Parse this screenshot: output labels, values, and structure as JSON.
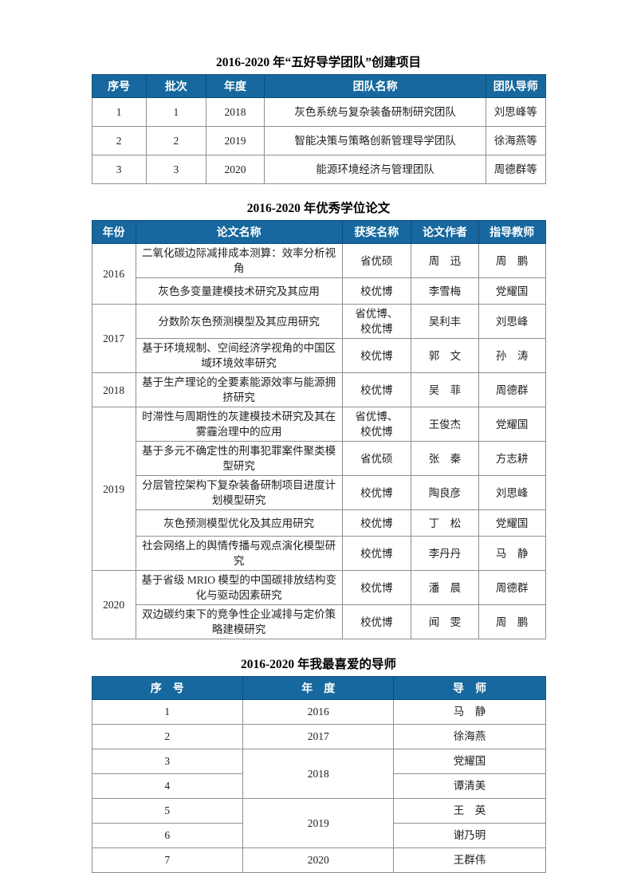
{
  "colors": {
    "header_bg": "#16689E",
    "header_text": "#ffffff",
    "cell_border": "#8f8f8f",
    "header_border": "#0d4f7d",
    "body_text": "#1f1f1f",
    "page_bg": "#ffffff"
  },
  "tables": [
    {
      "title": "2016-2020 年“五好导学团队”创建项目",
      "columns": [
        "序号",
        "批次",
        "年度",
        "团队名称",
        "团队导师"
      ],
      "rows": [
        [
          {
            "t": "1"
          },
          {
            "t": "1"
          },
          {
            "t": "2018"
          },
          {
            "t": "灰色系统与复杂装备研制研究团队"
          },
          {
            "t": "刘思峰等"
          }
        ],
        [
          {
            "t": "2"
          },
          {
            "t": "2"
          },
          {
            "t": "2019"
          },
          {
            "t": "智能决策与策略创新管理导学团队"
          },
          {
            "t": "徐海燕等"
          }
        ],
        [
          {
            "t": "3"
          },
          {
            "t": "3"
          },
          {
            "t": "2020"
          },
          {
            "t": "能源环境经济与管理团队"
          },
          {
            "t": "周德群等"
          }
        ]
      ]
    },
    {
      "title": "2016-2020 年优秀学位论文",
      "columns": [
        "年份",
        "论文名称",
        "获奖名称",
        "论文作者",
        "指导教师"
      ],
      "rows": [
        [
          {
            "t": "2016",
            "rs": 2
          },
          {
            "t": "二氧化碳边际减排成本测算：效率分析视角"
          },
          {
            "t": "省优硕"
          },
          {
            "t": "周　迅"
          },
          {
            "t": "周　鹏"
          }
        ],
        [
          {
            "t": "灰色多变量建模技术研究及其应用"
          },
          {
            "t": "校优博"
          },
          {
            "t": "李雪梅"
          },
          {
            "t": "党耀国"
          }
        ],
        [
          {
            "t": "2017",
            "rs": 2
          },
          {
            "t": "分数阶灰色预测模型及其应用研究"
          },
          {
            "t": "省优博、\n校优博"
          },
          {
            "t": "吴利丰"
          },
          {
            "t": "刘思峰"
          }
        ],
        [
          {
            "t": "基于环境规制、空间经济学视角的中国区域环境效率研究"
          },
          {
            "t": "校优博"
          },
          {
            "t": "郭　文"
          },
          {
            "t": "孙　涛"
          }
        ],
        [
          {
            "t": "2018"
          },
          {
            "t": "基于生产理论的全要素能源效率与能源拥挤研究"
          },
          {
            "t": "校优博"
          },
          {
            "t": "吴　菲"
          },
          {
            "t": "周德群"
          }
        ],
        [
          {
            "t": "2019",
            "rs": 5
          },
          {
            "t": "时滞性与周期性的灰建模技术研究及其在雾霾治理中的应用"
          },
          {
            "t": "省优博、\n校优博"
          },
          {
            "t": "王俊杰"
          },
          {
            "t": "党耀国"
          }
        ],
        [
          {
            "t": "基于多元不确定性的刑事犯罪案件聚类模型研究"
          },
          {
            "t": "省优硕"
          },
          {
            "t": "张　秦"
          },
          {
            "t": "方志耕"
          }
        ],
        [
          {
            "t": "分层管控架构下复杂装备研制项目进度计划模型研究"
          },
          {
            "t": "校优博"
          },
          {
            "t": "陶良彦"
          },
          {
            "t": "刘思峰"
          }
        ],
        [
          {
            "t": "灰色预测模型优化及其应用研究"
          },
          {
            "t": "校优博"
          },
          {
            "t": "丁　松"
          },
          {
            "t": "党耀国"
          }
        ],
        [
          {
            "t": "社会网络上的舆情传播与观点演化模型研究"
          },
          {
            "t": "校优博"
          },
          {
            "t": "李丹丹"
          },
          {
            "t": "马　静"
          }
        ],
        [
          {
            "t": "2020",
            "rs": 2
          },
          {
            "t": "基于省级 MRIO 模型的中国碳排放结构变化与驱动因素研究"
          },
          {
            "t": "校优博"
          },
          {
            "t": "潘　晨"
          },
          {
            "t": "周德群"
          }
        ],
        [
          {
            "t": "双边碳约束下的竞争性企业减排与定价策略建模研究"
          },
          {
            "t": "校优博"
          },
          {
            "t": "闻　雯"
          },
          {
            "t": "周　鹏"
          }
        ]
      ]
    },
    {
      "title": "2016-2020 年我最喜爱的导师",
      "columns": [
        "序　号",
        "年　度",
        "导　师"
      ],
      "rows": [
        [
          {
            "t": "1"
          },
          {
            "t": "2016"
          },
          {
            "t": "马　静"
          }
        ],
        [
          {
            "t": "2"
          },
          {
            "t": "2017"
          },
          {
            "t": "徐海燕"
          }
        ],
        [
          {
            "t": "3"
          },
          {
            "t": "2018",
            "rs": 2
          },
          {
            "t": "党耀国"
          }
        ],
        [
          {
            "t": "4"
          },
          {
            "t": "谭清美"
          }
        ],
        [
          {
            "t": "5"
          },
          {
            "t": "2019",
            "rs": 2
          },
          {
            "t": "王　英"
          }
        ],
        [
          {
            "t": "6"
          },
          {
            "t": "谢乃明"
          }
        ],
        [
          {
            "t": "7"
          },
          {
            "t": "2020"
          },
          {
            "t": "王群伟"
          }
        ]
      ]
    }
  ]
}
